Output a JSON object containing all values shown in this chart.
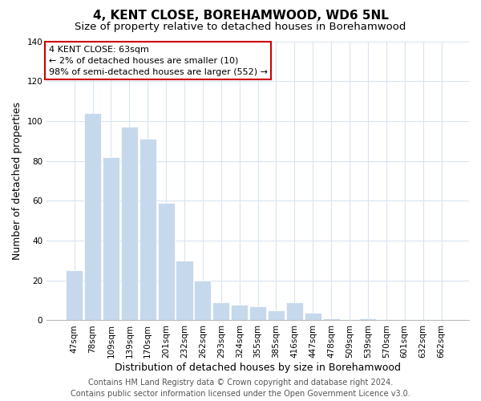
{
  "title": "4, KENT CLOSE, BOREHAMWOOD, WD6 5NL",
  "subtitle": "Size of property relative to detached houses in Borehamwood",
  "xlabel": "Distribution of detached houses by size in Borehamwood",
  "ylabel": "Number of detached properties",
  "bar_labels": [
    "47sqm",
    "78sqm",
    "109sqm",
    "139sqm",
    "170sqm",
    "201sqm",
    "232sqm",
    "262sqm",
    "293sqm",
    "324sqm",
    "355sqm",
    "385sqm",
    "416sqm",
    "447sqm",
    "478sqm",
    "509sqm",
    "539sqm",
    "570sqm",
    "601sqm",
    "632sqm",
    "662sqm"
  ],
  "bar_values": [
    25,
    104,
    82,
    97,
    91,
    59,
    30,
    20,
    9,
    8,
    7,
    5,
    9,
    4,
    1,
    0,
    1,
    0,
    0,
    0,
    0
  ],
  "bar_color": "#c6d9ec",
  "bar_edge_color": "#ffffff",
  "ylim": [
    0,
    140
  ],
  "yticks": [
    0,
    20,
    40,
    60,
    80,
    100,
    120,
    140
  ],
  "annotation_title": "4 KENT CLOSE: 63sqm",
  "annotation_line1": "← 2% of detached houses are smaller (10)",
  "annotation_line2": "98% of semi-detached houses are larger (552) →",
  "annotation_box_color": "#ffffff",
  "annotation_box_edge": "#cc0000",
  "footer_line1": "Contains HM Land Registry data © Crown copyright and database right 2024.",
  "footer_line2": "Contains public sector information licensed under the Open Government Licence v3.0.",
  "background_color": "#ffffff",
  "grid_color": "#d8e4f0",
  "title_fontsize": 11,
  "subtitle_fontsize": 9.5,
  "axis_label_fontsize": 9,
  "tick_fontsize": 7.5,
  "footer_fontsize": 7
}
